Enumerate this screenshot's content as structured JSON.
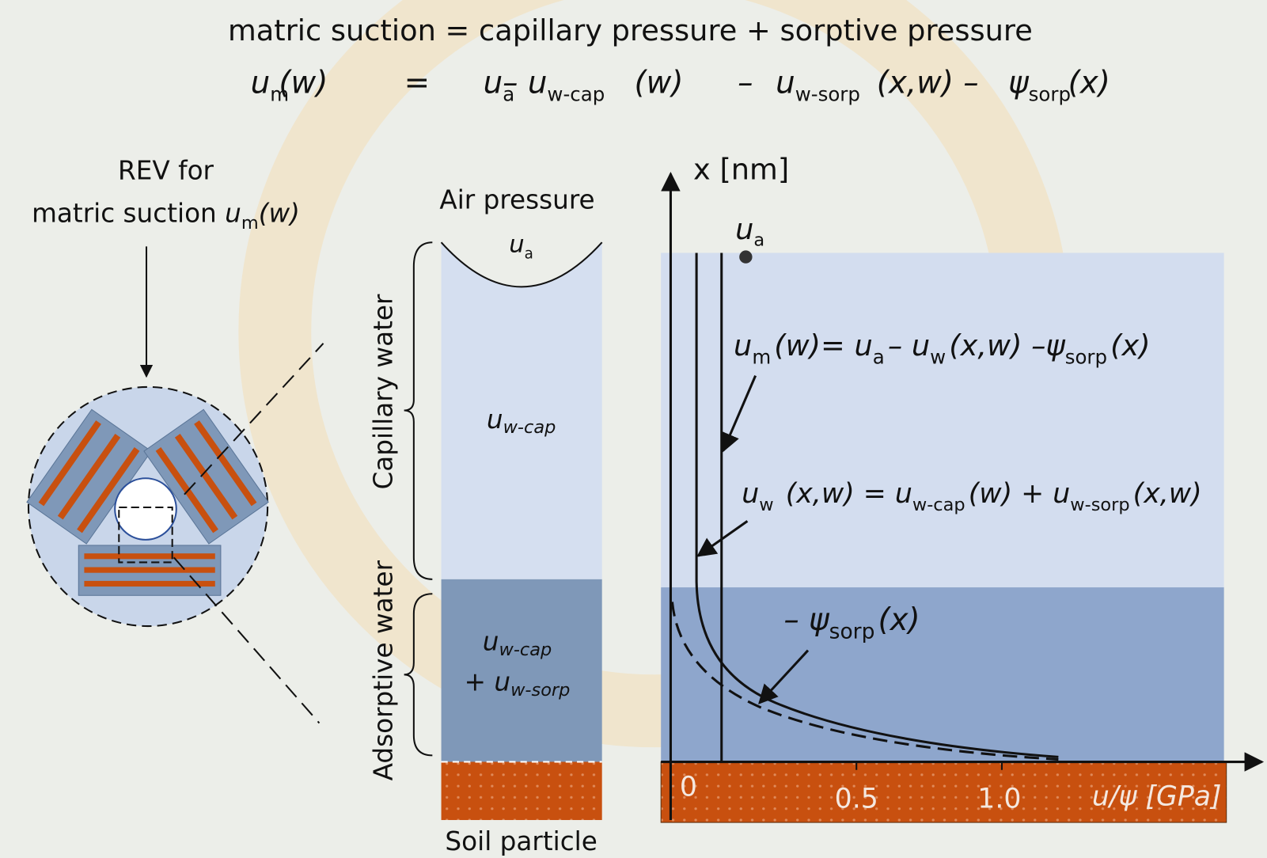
{
  "header": {
    "title": "matric suction = capillary pressure + sorptive pressure",
    "equation": [
      {
        "main": "u",
        "sub": "m"
      },
      {
        "main": "(w)"
      },
      {
        "main": "="
      },
      {
        "main": "u",
        "sub": "a"
      },
      {
        "main": "– u",
        "sub": "w-cap"
      },
      {
        "main": "(w)"
      },
      {
        "main": "–"
      },
      {
        "main": "u",
        "sub": "w-sorp"
      },
      {
        "main": "(x,w) –"
      },
      {
        "main": "ψ",
        "sub": "sorp"
      },
      {
        "main": "(x)"
      }
    ]
  },
  "rev": {
    "line1": "REV for",
    "line2": "matric suction",
    "var": "u",
    "sub": "m",
    "arg": "(w)"
  },
  "column": {
    "air_pressure": "Air pressure",
    "ua": {
      "main": "u",
      "sub": "a"
    },
    "capillary": "Capillary water",
    "adsorptive": "Adsorptive water",
    "cap_label": "u",
    "cap_sub": "w-cap",
    "ads_label1": "u",
    "ads_sub1": "w-cap",
    "ads_label2": "+ u",
    "ads_sub2": "w-sorp",
    "soil": "Soil particle"
  },
  "graph": {
    "y_axis": "x [nm]",
    "ua": {
      "main": "u",
      "sub": "a"
    },
    "eq1": [
      {
        "main": "u",
        "sub": "m"
      },
      {
        "main": "(w)= u",
        "sub": "a"
      },
      {
        "main": "– u",
        "sub": "w"
      },
      {
        "main": "(x,w) –ψ",
        "sub": "sorp"
      },
      {
        "main": "(x)"
      }
    ],
    "eq2": [
      {
        "main": "u",
        "sub": "w"
      },
      {
        "main": " (x,w) = u",
        "sub": "w-cap"
      },
      {
        "main": "(w) + u",
        "sub": "w-sorp"
      },
      {
        "main": "(x,w)"
      }
    ],
    "eq3": [
      {
        "main": "– ψ",
        "sub": "sorp"
      },
      {
        "main": "(x)"
      }
    ],
    "ticks": [
      "0",
      "0.5",
      "1.0"
    ],
    "x_axis": "u/ψ [GPa]"
  }
}
